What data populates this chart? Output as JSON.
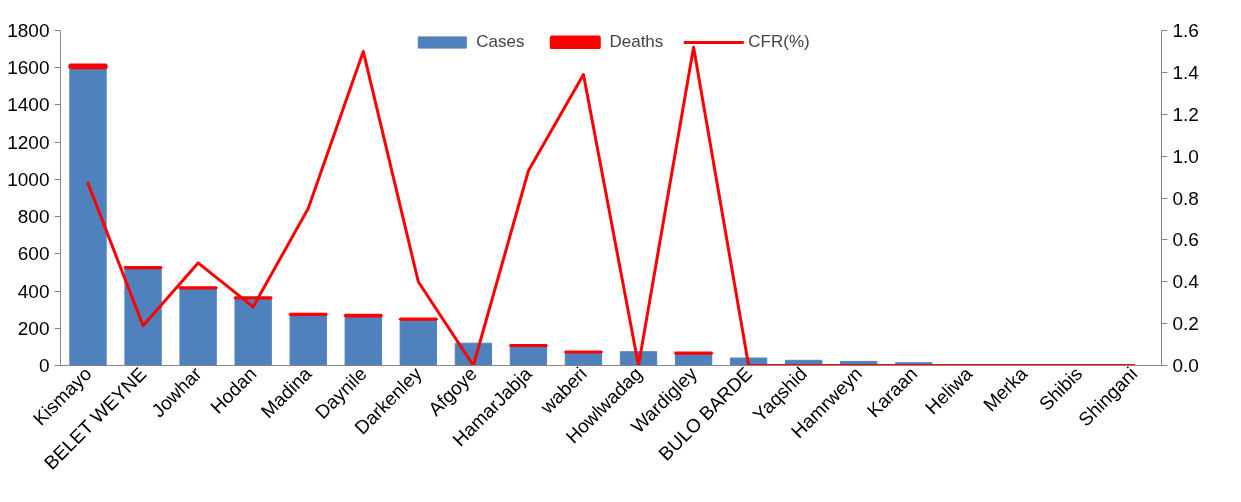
{
  "chart_data": {
    "type": "bar",
    "stacked": true,
    "categories": [
      "Kismayo",
      "BELET WEYNE",
      "Jowhar",
      "Hodan",
      "Madina",
      "Daynile",
      "Darkenley",
      "Afgoye",
      "HamarJabja",
      "waberi",
      "Howlwadag",
      "Wardigley",
      "BULO BARDE",
      "Yaqshid",
      "Hamrweyn",
      "Karaan",
      "Heliwa",
      "Merka",
      "Shibis",
      "Shingani"
    ],
    "series": [
      {
        "name": "Cases",
        "color": "#4f81bd",
        "values": [
          1600,
          525,
          416,
          363,
          274,
          266,
          249,
          120,
          107,
          72,
          74,
          66,
          40,
          28,
          22,
          15,
          null,
          5,
          3,
          null
        ]
      },
      {
        "name": "Deaths",
        "color": "#ff0000",
        "values": [
          14,
          1,
          2,
          1,
          2,
          4,
          1,
          0,
          1,
          1,
          0,
          1,
          0,
          0,
          0,
          0,
          null,
          0,
          0,
          null
        ]
      },
      {
        "name": "CFR(%)",
        "type": "line",
        "axis": "y2",
        "color": "#ff0000",
        "values": [
          0.87,
          0.19,
          0.49,
          0.28,
          0.75,
          1.5,
          0.4,
          0,
          0.93,
          1.39,
          0,
          1.52,
          0,
          0,
          0,
          0,
          0,
          0,
          0,
          0
        ]
      }
    ],
    "ylim": [
      0,
      1800
    ],
    "yticks": [
      0,
      200,
      400,
      600,
      800,
      1000,
      1200,
      1400,
      1600,
      1800
    ],
    "y2lim": [
      0,
      1.6
    ],
    "y2ticks": [
      {
        "value": 0,
        "label": "0.0"
      },
      {
        "value": 0.2,
        "label": "0.2"
      },
      {
        "value": 0.4,
        "label": "0.4"
      },
      {
        "value": 0.6,
        "label": "0.6"
      },
      {
        "value": 0.8,
        "label": "0.8"
      },
      {
        "value": 1.0,
        "label": "1.0"
      },
      {
        "value": 1.2,
        "label": "1.2"
      },
      {
        "value": 1.4,
        "label": "1.4"
      },
      {
        "value": 1.6,
        "label": "1.6"
      }
    ],
    "grid": false,
    "legend": "top"
  }
}
